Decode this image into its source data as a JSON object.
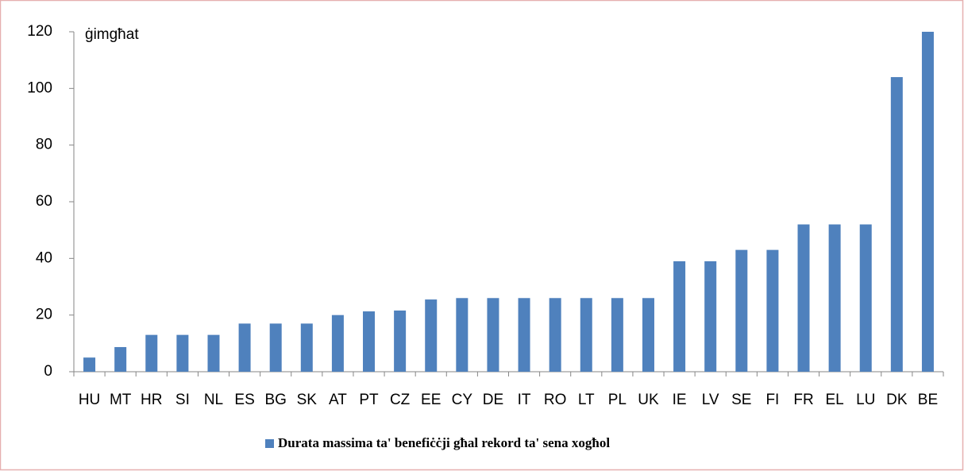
{
  "chart_data": {
    "type": "bar",
    "unit_label": "ġimgħat",
    "categories": [
      "HU",
      "MT",
      "HR",
      "SI",
      "NL",
      "ES",
      "BG",
      "SK",
      "AT",
      "PT",
      "CZ",
      "EE",
      "CY",
      "DE",
      "IT",
      "RO",
      "LT",
      "PL",
      "UK",
      "IE",
      "LV",
      "SE",
      "FI",
      "FR",
      "EL",
      "LU",
      "DK",
      "BE"
    ],
    "series": [
      {
        "name": "Durata massima ta' benefiċċji għal rekord ta' sena xogħol",
        "color": "#4f81bd",
        "values": [
          5,
          8.7,
          13,
          13,
          13,
          17,
          17,
          17,
          20,
          21.3,
          21.6,
          25.5,
          26,
          26,
          26,
          26,
          26,
          26,
          26,
          39,
          39,
          43,
          43,
          52,
          52,
          52,
          104,
          120
        ]
      }
    ],
    "ylim": [
      0,
      120
    ],
    "yticks": [
      0,
      20,
      40,
      60,
      80,
      100,
      120
    ],
    "grid": false,
    "legend": "bottom"
  }
}
